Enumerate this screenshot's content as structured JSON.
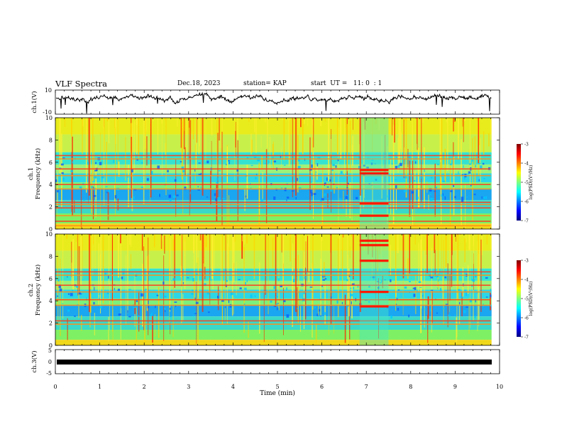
{
  "header": {
    "title": "VLF Spectra",
    "date": "Dec.18, 2023",
    "station": "station= KAP",
    "start": "start  UT =   11: 0  : 1"
  },
  "chart_data": {
    "type": "heatmap",
    "x_axis": {
      "label": "Time  (min)",
      "range": [
        0,
        10
      ],
      "ticks": [
        "0",
        "1",
        "2",
        "3",
        "4",
        "5",
        "6",
        "7",
        "8",
        "9",
        "10"
      ]
    },
    "panels": {
      "ch1_waveform": {
        "type": "line",
        "ylabel": "ch.1(V)",
        "ylim": [
          -10,
          10
        ],
        "ytick_labels": [
          "10",
          "-10"
        ]
      },
      "ch1_spectrogram": {
        "type": "heatmap",
        "ylabel_top": "ch.1",
        "ylabel": "Frequency  (kHz)",
        "ylim": [
          0,
          10
        ],
        "ytick_labels": [
          "0",
          "2",
          "4",
          "6",
          "8",
          "10"
        ],
        "colorbar": {
          "label": "log(PSD)(V²/Hz)",
          "range": [
            -7,
            -3
          ],
          "ticks": [
            "-3",
            "-4",
            "-5",
            "-6",
            "-7"
          ]
        },
        "persistent_lines_khz": [
          0.3,
          0.7,
          1.2,
          1.9,
          2.2,
          2.4,
          3.6,
          4.0,
          4.8,
          5.4,
          6.3,
          6.6
        ],
        "event": {
          "t_min": [
            6.85,
            7.5
          ],
          "bands_khz": [
            1.2,
            2.3,
            5.0,
            5.3
          ]
        }
      },
      "ch2_spectrogram": {
        "type": "heatmap",
        "ylabel_top": "ch.2",
        "ylabel": "Frequency  (kHz)",
        "ylim": [
          0,
          10
        ],
        "ytick_labels": [
          "0",
          "2",
          "4",
          "6",
          "8",
          "10"
        ],
        "colorbar": {
          "label": "log(PSD)(V²/Hz)",
          "range": [
            -7,
            -3
          ],
          "ticks": [
            "-3",
            "-4",
            "-5",
            "-6",
            "-7"
          ]
        },
        "persistent_lines_khz": [
          1.9,
          2.2,
          3.6,
          4.1,
          4.8,
          5.4,
          6.3,
          6.6
        ],
        "event": {
          "t_min": [
            6.85,
            7.5
          ],
          "bands_khz": [
            3.5,
            4.8,
            7.6,
            9.0,
            9.4
          ]
        }
      },
      "ch3_waveform": {
        "type": "line",
        "ylabel": "ch.3(V)",
        "ylim": [
          -5,
          5
        ],
        "ytick_labels": [
          "5",
          "0",
          "-5"
        ]
      }
    }
  },
  "colors": {
    "jet": [
      "#00007f",
      "#0000ff",
      "#007fff",
      "#00ffff",
      "#7fff7f",
      "#ffff00",
      "#ff7f00",
      "#ff0000",
      "#7f0000"
    ]
  }
}
